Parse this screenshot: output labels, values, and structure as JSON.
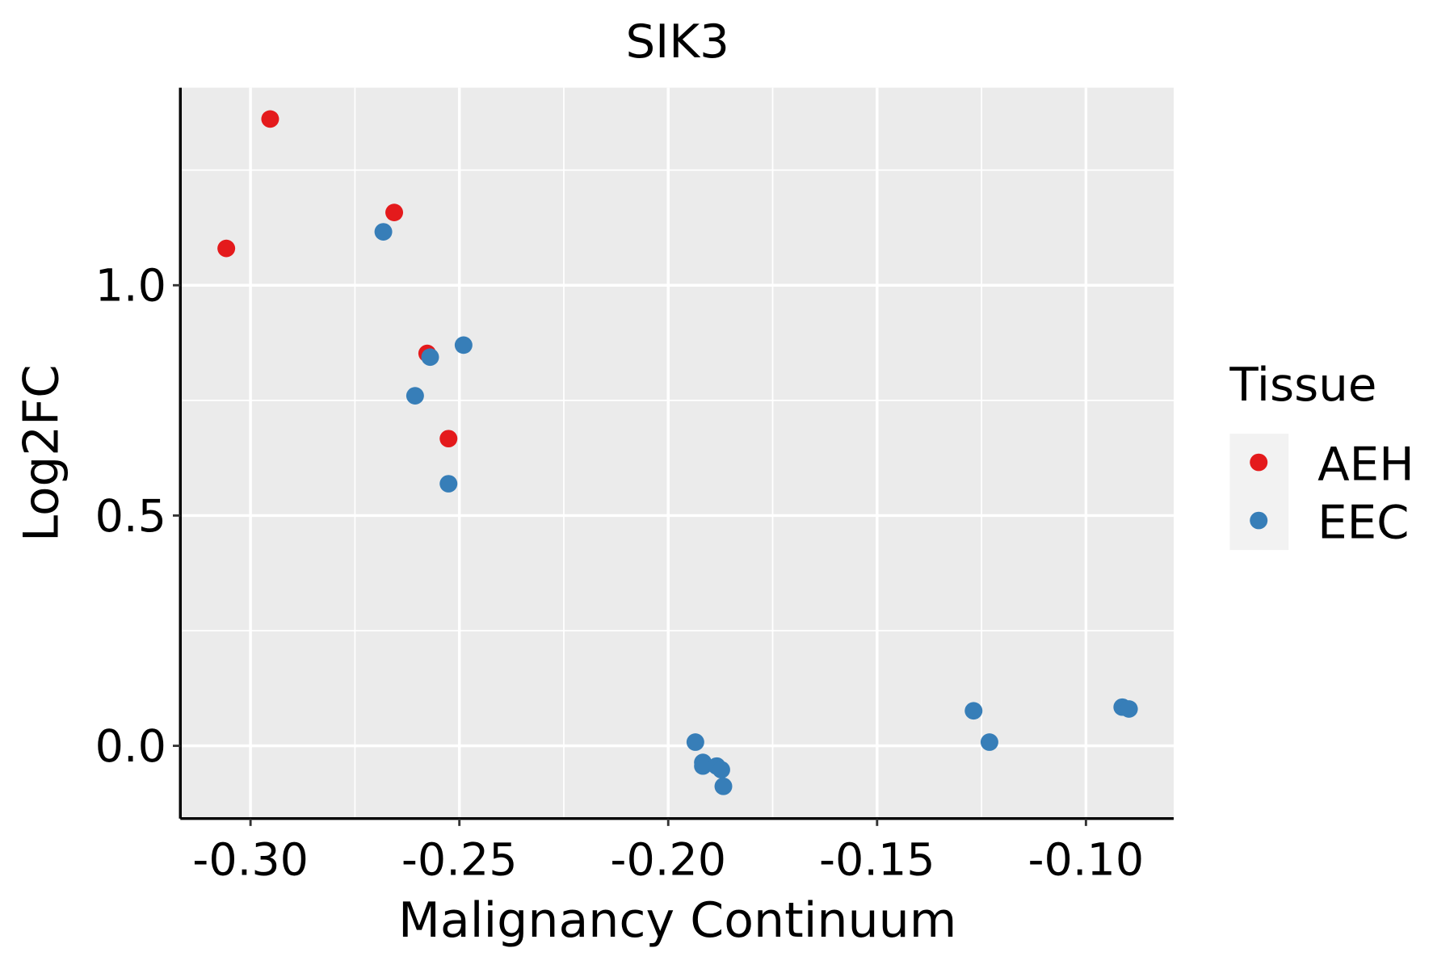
{
  "chart_data": {
    "type": "scatter",
    "title": "SIK3",
    "xlabel": "Malignancy Continuum",
    "ylabel": "Log2FC",
    "xlim": [
      -0.3168,
      -0.079
    ],
    "ylim": [
      -0.158,
      1.429
    ],
    "xticks": [
      -0.3,
      -0.25,
      -0.2,
      -0.15,
      -0.1
    ],
    "xtick_labels": [
      "-0.30",
      "-0.25",
      "-0.20",
      "-0.15",
      "-0.10"
    ],
    "yticks": [
      0.0,
      0.5,
      1.0
    ],
    "ytick_labels": [
      "0.0",
      "0.5",
      "1.0"
    ],
    "grid": true,
    "legend": {
      "title": "Tissue",
      "placement": "right"
    },
    "series": [
      {
        "name": "AEH",
        "color": "#E41A1C",
        "x": [
          -0.3058,
          -0.2953,
          -0.2656,
          -0.2577,
          -0.2526
        ],
        "y": [
          1.08,
          1.361,
          1.158,
          0.852,
          0.667
        ]
      },
      {
        "name": "EEC",
        "color": "#377EB8",
        "x": [
          -0.2682,
          -0.257,
          -0.249,
          -0.2606,
          -0.2526,
          -0.1935,
          -0.1917,
          -0.1917,
          -0.1884,
          -0.1873,
          -0.1868,
          -0.1269,
          -0.1231,
          -0.0913,
          -0.0897
        ],
        "y": [
          1.116,
          0.844,
          0.87,
          0.76,
          0.569,
          0.008,
          -0.036,
          -0.044,
          -0.044,
          -0.052,
          -0.088,
          0.076,
          0.008,
          0.084,
          0.08
        ]
      }
    ]
  }
}
